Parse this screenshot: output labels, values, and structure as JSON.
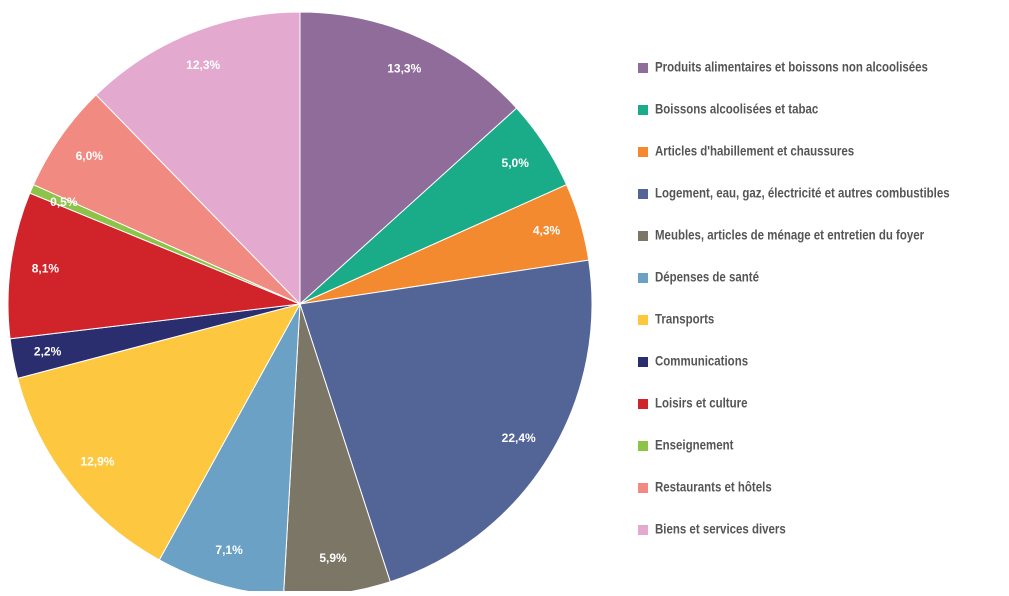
{
  "chart_data": {
    "type": "pie",
    "categories": [
      "Produits alimentaires et boissons non alcoolisées",
      "Boissons alcoolisées et tabac",
      "Articles d'habillement et chaussures",
      "Logement, eau, gaz, électricité et autres combustibles",
      "Meubles, articles de ménage et entretien du foyer",
      "Dépenses de santé",
      "Transports",
      "Communications",
      "Loisirs et culture",
      "Enseignement",
      "Restaurants et hôtels",
      "Biens et services divers"
    ],
    "values": [
      13.3,
      5.0,
      4.3,
      22.4,
      5.9,
      7.1,
      12.9,
      2.2,
      8.1,
      0.5,
      6.0,
      12.3
    ],
    "value_labels": [
      "13,3%",
      "5,0%",
      "4,3%",
      "22,4%",
      "5,9%",
      "7,1%",
      "12,9%",
      "2,2%",
      "8,1%",
      "0,5%",
      "6,0%",
      "12,3%"
    ],
    "colors": [
      "#8f6c9a",
      "#1aab88",
      "#f38a2f",
      "#536496",
      "#7c7666",
      "#6aa1c5",
      "#fdc83f",
      "#2b2e6e",
      "#d0232a",
      "#8cc44a",
      "#f18a80",
      "#e3a9cf"
    ],
    "legend": "right"
  }
}
